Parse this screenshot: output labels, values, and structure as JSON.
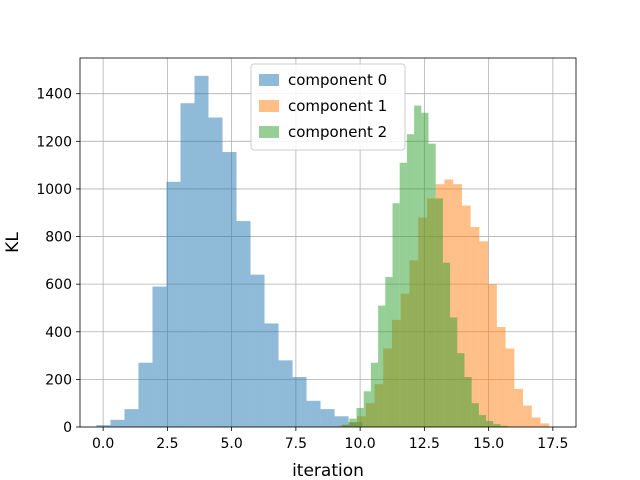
{
  "chart_data": {
    "type": "bar",
    "subtype": "histogram",
    "title": "",
    "xlabel": "iteration",
    "ylabel": "KL",
    "xlim": [
      -0.9,
      18.4
    ],
    "ylim": [
      0,
      1550
    ],
    "xticks": [
      0.0,
      2.5,
      5.0,
      7.5,
      10.0,
      12.5,
      15.0,
      17.5
    ],
    "xtick_labels": [
      "0.0",
      "2.5",
      "5.0",
      "7.5",
      "10.0",
      "12.5",
      "15.0",
      "17.5"
    ],
    "yticks": [
      0,
      200,
      400,
      600,
      800,
      1000,
      1200,
      1400
    ],
    "ytick_labels": [
      "0",
      "200",
      "400",
      "600",
      "800",
      "1000",
      "1200",
      "1400"
    ],
    "grid": true,
    "legend_position": "top-center",
    "series": [
      {
        "name": "component 0",
        "color": "#1f77b4",
        "alpha": 0.5,
        "bin_edges": [
          -0.26,
          0.285,
          0.83,
          1.375,
          1.92,
          2.465,
          3.01,
          3.555,
          4.1,
          4.645,
          5.19,
          5.735,
          6.28,
          6.825,
          7.37,
          7.915,
          8.46,
          9.005,
          9.55,
          10.095
        ],
        "counts": [
          8,
          30,
          75,
          270,
          590,
          1030,
          1360,
          1475,
          1300,
          1155,
          865,
          640,
          435,
          280,
          210,
          110,
          75,
          45,
          20
        ]
      },
      {
        "name": "component 1",
        "color": "#ff7f0e",
        "alpha": 0.5,
        "bin_edges": [
          9.2,
          9.54,
          9.88,
          10.22,
          10.56,
          10.9,
          11.24,
          11.58,
          11.92,
          12.26,
          12.6,
          12.94,
          13.28,
          13.62,
          13.96,
          14.3,
          14.64,
          14.98,
          15.32,
          15.66,
          16.0,
          16.34,
          16.68,
          17.02,
          17.36
        ],
        "counts": [
          8,
          20,
          45,
          100,
          180,
          330,
          450,
          560,
          700,
          880,
          960,
          1020,
          1040,
          1020,
          930,
          840,
          780,
          600,
          420,
          330,
          160,
          90,
          40,
          15
        ]
      },
      {
        "name": "component 2",
        "color": "#2ca02c",
        "alpha": 0.5,
        "bin_edges": [
          9.3,
          9.58,
          9.86,
          10.14,
          10.42,
          10.7,
          10.98,
          11.26,
          11.54,
          11.82,
          12.1,
          12.38,
          12.66,
          12.94,
          13.22,
          13.5,
          13.78,
          14.06,
          14.34,
          14.62,
          14.9,
          15.18,
          15.46,
          15.74
        ],
        "counts": [
          10,
          35,
          80,
          150,
          270,
          510,
          630,
          940,
          1110,
          1230,
          1350,
          1320,
          1190,
          960,
          690,
          460,
          310,
          210,
          100,
          50,
          25,
          12,
          5
        ]
      }
    ]
  }
}
